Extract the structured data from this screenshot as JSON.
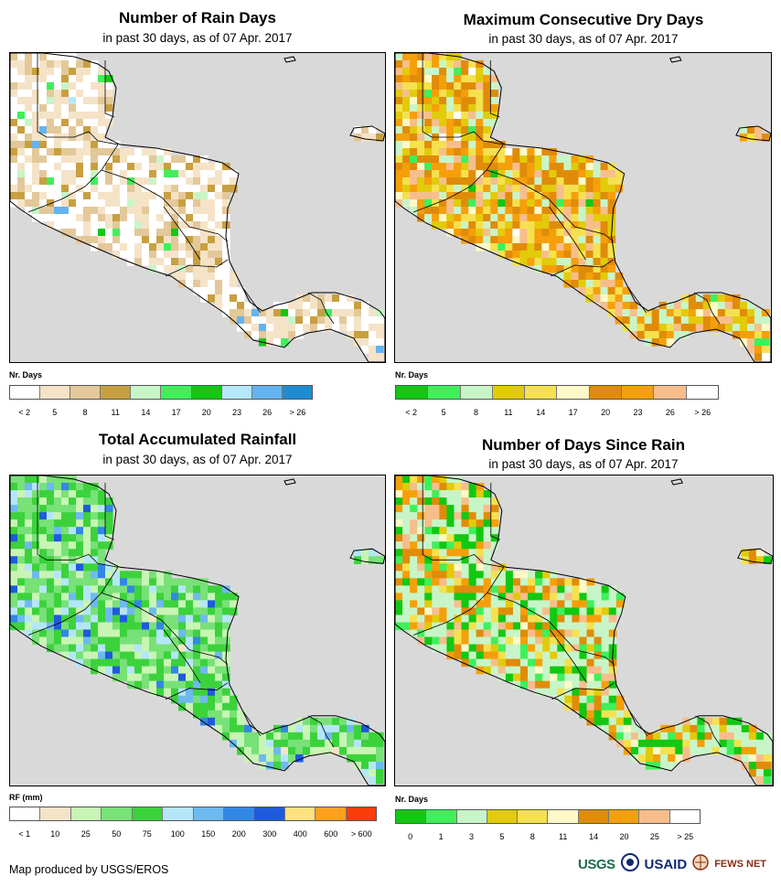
{
  "credit": "Map produced by USGS/EROS",
  "logos": {
    "usgs": "USGS",
    "usaid": "USAID",
    "fews": "FEWS NET"
  },
  "panels": [
    {
      "id": "rain-days",
      "title": "Number of Rain Days",
      "subtitle": "in past 30 days, as of 07 Apr. 2017",
      "legend_title": "Nr. Days",
      "legend_colors": [
        "#ffffff",
        "#f5e3c8",
        "#e3c89a",
        "#c8a040",
        "#c8f5c8",
        "#3ff05a",
        "#12c812",
        "#b4e8fa",
        "#64b4f0",
        "#1e8cd2"
      ],
      "legend_labels": [
        "< 2",
        "5",
        "8",
        "11",
        "14",
        "17",
        "20",
        "23",
        "26",
        "> 26"
      ],
      "palette_weights": [
        40,
        30,
        18,
        7,
        3,
        1,
        0.5,
        0.3,
        0.2,
        0
      ]
    },
    {
      "id": "max-dry-days",
      "title": "Maximum Consecutive Dry Days",
      "subtitle": "in past 30 days, as of 07 Apr. 2017",
      "legend_title": "Nr. Days",
      "legend_colors": [
        "#12c812",
        "#3ff05a",
        "#c8f5c8",
        "#e1cb0a",
        "#f5e150",
        "#fff8c8",
        "#e08c0a",
        "#f5a00a",
        "#f7be8c",
        "#ffffff"
      ],
      "legend_labels": [
        "< 2",
        "5",
        "8",
        "11",
        "14",
        "17",
        "20",
        "23",
        "26",
        "> 26"
      ],
      "palette_weights": [
        1,
        2,
        12,
        14,
        14,
        4,
        22,
        18,
        12,
        1
      ]
    },
    {
      "id": "total-rainfall",
      "title": "Total Accumulated Rainfall",
      "subtitle": "in past 30 days, as of 07 Apr. 2017",
      "legend_title": "RF (mm)",
      "legend_colors": [
        "#ffffff",
        "#f5e3c8",
        "#c8f5b4",
        "#78e178",
        "#3cd23c",
        "#b4e6fa",
        "#6eb9f0",
        "#3287e6",
        "#1e5adc",
        "#ffe17d",
        "#ffa01e",
        "#fa3c0a"
      ],
      "legend_labels": [
        "< 1",
        "10",
        "25",
        "50",
        "75",
        "100",
        "150",
        "200",
        "300",
        "400",
        "600",
        "> 600"
      ],
      "palette_weights": [
        0,
        1,
        22,
        26,
        30,
        10,
        6,
        3,
        2,
        0,
        0,
        0
      ]
    },
    {
      "id": "days-since-rain",
      "title": "Number of Days Since Rain",
      "subtitle": "in past 30 days, as of 07 Apr. 2017",
      "legend_title": "Nr. Days",
      "legend_colors": [
        "#12c812",
        "#3ff05a",
        "#c8f5c8",
        "#e1cb0a",
        "#f5e150",
        "#fff8c8",
        "#e08c0a",
        "#f5a00a",
        "#f7be8c",
        "#ffffff"
      ],
      "legend_labels": [
        "0",
        "1",
        "3",
        "5",
        "8",
        "11",
        "14",
        "20",
        "25",
        "> 25"
      ],
      "palette_weights": [
        14,
        8,
        34,
        6,
        7,
        4,
        10,
        9,
        8,
        0
      ]
    }
  ]
}
